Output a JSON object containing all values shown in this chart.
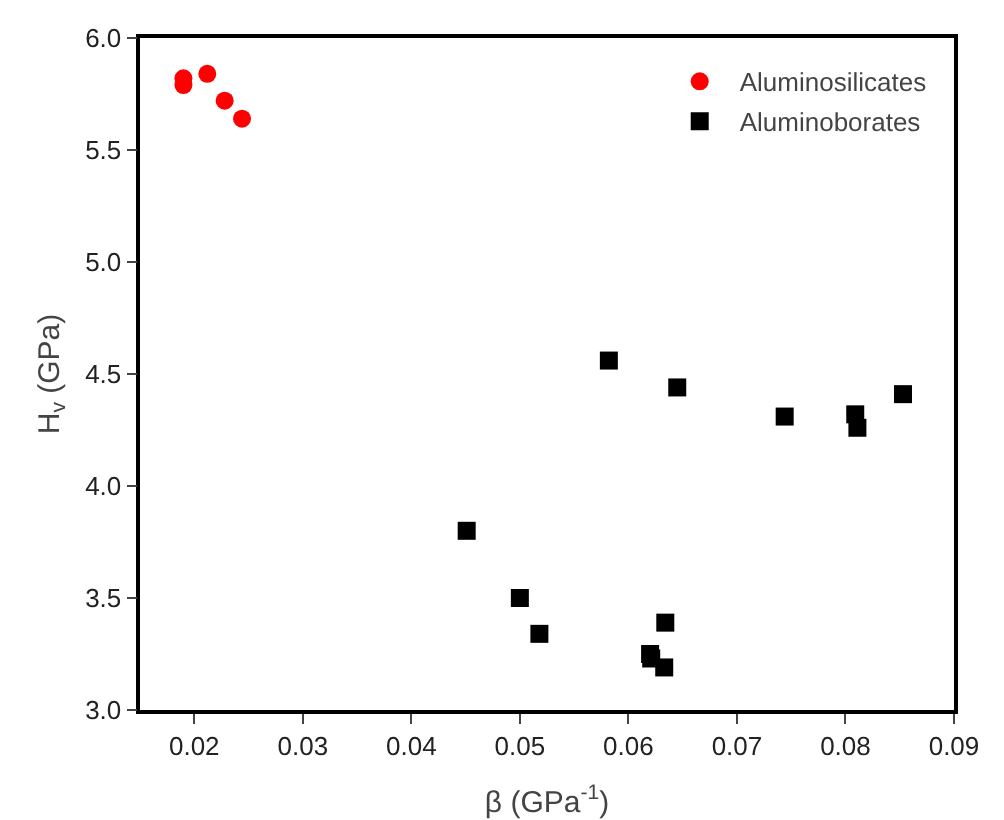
{
  "chart_data": {
    "type": "scatter",
    "xlabel": "β (GPa$^{-1}$)",
    "ylabel": "H$_{v}$ (GPa)",
    "xlim": [
      0.015,
      0.09
    ],
    "xticks": [
      {
        "value": 0.02,
        "label": "0.02"
      },
      {
        "value": 0.03,
        "label": "0.03"
      },
      {
        "value": 0.04,
        "label": "0.04"
      },
      {
        "value": 0.05,
        "label": "0.05"
      },
      {
        "value": 0.06,
        "label": "0.06"
      },
      {
        "value": 0.07,
        "label": "0.07"
      },
      {
        "value": 0.08,
        "label": "0.08"
      },
      {
        "value": 0.09,
        "label": "0.09"
      }
    ],
    "ylim": [
      3.0,
      6.0
    ],
    "yticks": [
      {
        "value": 3,
        "label": "3.0"
      },
      {
        "value": 3.5,
        "label": "3.5"
      },
      {
        "value": 4,
        "label": "4.0"
      },
      {
        "value": 4.5,
        "label": "4.5"
      },
      {
        "value": 5,
        "label": "5.0"
      },
      {
        "value": 5.5,
        "label": "5.5"
      },
      {
        "value": 6,
        "label": "6.0"
      }
    ],
    "grid": false,
    "legend": "top right",
    "series": [
      {
        "name": "Aluminosilicates",
        "color": "#ff0000",
        "marker": "circle",
        "x": [
          0.019,
          0.019,
          0.0212,
          0.0228,
          0.0244
        ],
        "values": [
          5.82,
          5.79,
          5.84,
          5.72,
          5.64
        ]
      },
      {
        "name": "Aluminoborates",
        "color": "#000000",
        "marker": "square",
        "x": [
          0.0582,
          0.0645,
          0.0744,
          0.0809,
          0.0811,
          0.0853,
          0.0451,
          0.05,
          0.0518,
          0.0634,
          0.062,
          0.0621,
          0.0633
        ],
        "values": [
          4.56,
          4.44,
          4.31,
          4.32,
          4.26,
          4.41,
          3.8,
          3.5,
          3.34,
          3.39,
          3.25,
          3.23,
          3.19
        ]
      }
    ]
  }
}
